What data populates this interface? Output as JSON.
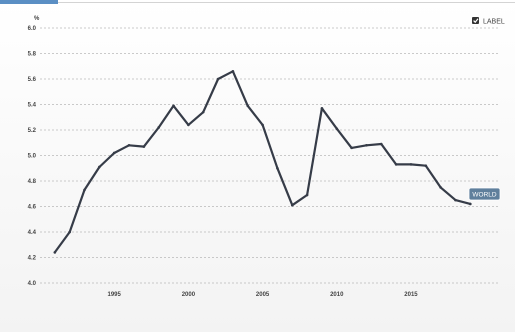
{
  "chart_data": {
    "type": "line",
    "title": "",
    "xlabel": "",
    "ylabel": "%",
    "xlim": [
      1990,
      2021
    ],
    "ylim": [
      4.0,
      6.0
    ],
    "yticks": [
      "4.0",
      "4.2",
      "4.4",
      "4.6",
      "4.8",
      "5.0",
      "5.2",
      "5.4",
      "5.6",
      "5.8",
      "6.0"
    ],
    "xticks": [
      "1995",
      "2000",
      "2005",
      "2010",
      "2015"
    ],
    "grid": true,
    "legend": {
      "label": "LABEL",
      "checked": true,
      "placement": "top-right"
    },
    "series": [
      {
        "name": "WORLD",
        "color": "#363c48",
        "x": [
          1991,
          1992,
          1993,
          1994,
          1995,
          1996,
          1997,
          1998,
          1999,
          2000,
          2001,
          2002,
          2003,
          2004,
          2005,
          2006,
          2007,
          2008,
          2009,
          2010,
          2011,
          2012,
          2013,
          2014,
          2015,
          2016,
          2017,
          2018,
          2019
        ],
        "values": [
          4.24,
          4.4,
          4.73,
          4.91,
          5.02,
          5.08,
          5.07,
          5.22,
          5.39,
          5.24,
          5.34,
          5.6,
          5.66,
          5.39,
          5.24,
          4.9,
          4.61,
          4.69,
          5.37,
          5.21,
          5.06,
          5.08,
          5.09,
          4.93,
          4.93,
          4.92,
          4.75,
          4.65,
          4.62
        ]
      }
    ]
  }
}
